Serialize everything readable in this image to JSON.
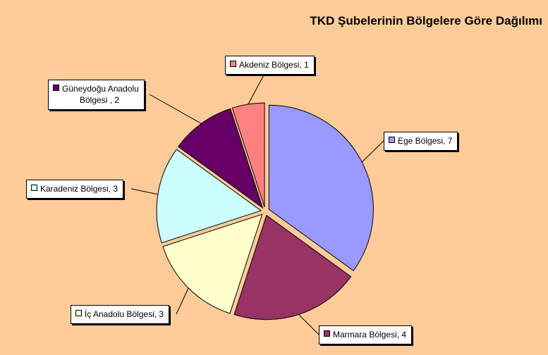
{
  "chart_data": {
    "type": "pie",
    "title": "TKD Şubelerinin Bölgelere Göre Dağılımı",
    "slices": [
      {
        "label": "Ege Bölgesi, 7",
        "name": "Ege Bölgesi",
        "value": 7,
        "color": "#9999FF"
      },
      {
        "label": "Marmara Bölgesi, 4",
        "name": "Marmara Bölgesi",
        "value": 4,
        "color": "#993366"
      },
      {
        "label": "İç Anadolu Bölgesi, 3",
        "name": "İç Anadolu Bölgesi",
        "value": 3,
        "color": "#FFFFCC"
      },
      {
        "label": "Karadeniz Bölgesi, 3",
        "name": "Karadeniz Bölgesi",
        "value": 3,
        "color": "#CCFFFF"
      },
      {
        "label_lines": [
          "Güneydoğu Anadolu",
          "Bölgesi , 2"
        ],
        "name": "Güneydoğu Anadolu Bölgesi",
        "value": 2,
        "color": "#660066"
      },
      {
        "label": "Akdeniz Bölgesi, 1",
        "name": "Akdeniz Bölgesi",
        "value": 1,
        "color": "#FF8080"
      }
    ],
    "start_angle_deg": 0,
    "direction": "clockwise",
    "exploded": true,
    "data_labels": "category and value, outside with leader lines"
  }
}
